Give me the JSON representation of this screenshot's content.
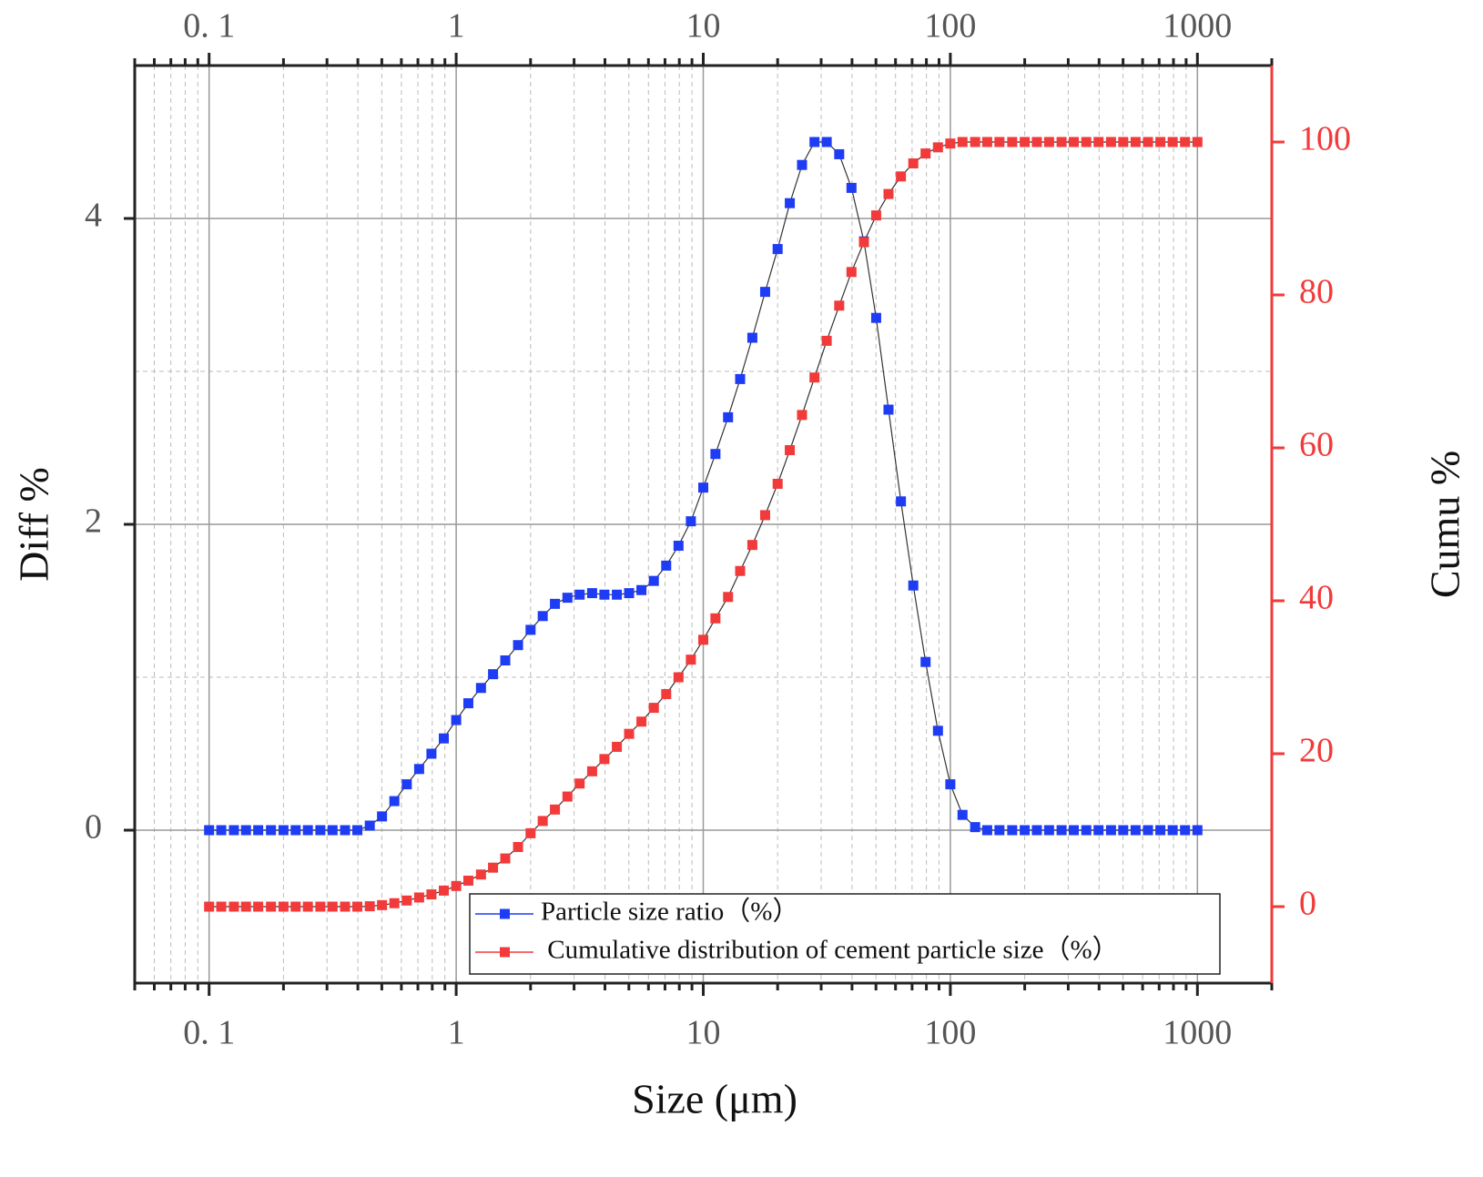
{
  "chart_data": {
    "type": "line",
    "xlabel": "Size (μm)",
    "ylabel": "Diff %",
    "y2label": "Cumu %",
    "xscale": "log",
    "xlim": [
      0.05,
      2000
    ],
    "xticks": [
      {
        "value": 0.1,
        "label": "0. 1"
      },
      1,
      10,
      100,
      1000
    ],
    "ylim": [
      -1,
      5
    ],
    "yticks": [
      0,
      2,
      4
    ],
    "y2lim": [
      -10,
      110
    ],
    "y2ticks": [
      0,
      20,
      40,
      60,
      80,
      100
    ],
    "grid": true,
    "legend": "lower center",
    "x": [
      0.1,
      0.112,
      0.126,
      0.141,
      0.158,
      0.178,
      0.2,
      0.224,
      0.251,
      0.282,
      0.316,
      0.355,
      0.398,
      0.447,
      0.501,
      0.562,
      0.631,
      0.708,
      0.794,
      0.891,
      1,
      1.12,
      1.26,
      1.41,
      1.58,
      1.78,
      2,
      2.24,
      2.51,
      2.82,
      3.16,
      3.55,
      3.98,
      4.47,
      5.01,
      5.62,
      6.31,
      7.08,
      7.94,
      8.91,
      10,
      11.2,
      12.6,
      14.1,
      15.8,
      17.8,
      20,
      22.4,
      25.1,
      28.2,
      31.6,
      35.5,
      39.8,
      44.7,
      50.1,
      56.2,
      63.1,
      70.8,
      79.4,
      89.1,
      100,
      112,
      126,
      141,
      158,
      178,
      200,
      224,
      251,
      282,
      316,
      355,
      398,
      447,
      501,
      562,
      631,
      708,
      794,
      891,
      1000
    ],
    "series": [
      {
        "name": "Particle size ratio（%）",
        "color": "#1f3cf5",
        "axis": "y",
        "values": [
          0,
          0,
          0,
          0,
          0,
          0,
          0,
          0,
          0,
          0,
          0,
          0,
          0,
          0.03,
          0.09,
          0.19,
          0.3,
          0.4,
          0.5,
          0.6,
          0.72,
          0.83,
          0.93,
          1.02,
          1.11,
          1.21,
          1.31,
          1.4,
          1.48,
          1.52,
          1.54,
          1.55,
          1.54,
          1.54,
          1.55,
          1.57,
          1.63,
          1.73,
          1.86,
          2.02,
          2.24,
          2.46,
          2.7,
          2.95,
          3.22,
          3.52,
          3.8,
          4.1,
          4.35,
          4.5,
          4.5,
          4.42,
          4.2,
          3.85,
          3.35,
          2.75,
          2.15,
          1.6,
          1.1,
          0.65,
          0.3,
          0.1,
          0.02,
          0,
          0,
          0,
          0,
          0,
          0,
          0,
          0,
          0,
          0,
          0,
          0,
          0,
          0,
          0,
          0,
          0,
          0
        ]
      },
      {
        "name": " Cumulative distribution of cement particle size（%）",
        "color": "#f23a3a",
        "axis": "y2",
        "values": [
          0,
          0,
          0,
          0,
          0,
          0,
          0,
          0,
          0,
          0,
          0,
          0,
          0,
          0.05,
          0.2,
          0.45,
          0.8,
          1.2,
          1.6,
          2.1,
          2.7,
          3.4,
          4.2,
          5.1,
          6.3,
          7.8,
          9.6,
          11.2,
          12.7,
          14.4,
          16.1,
          17.7,
          19.3,
          20.9,
          22.6,
          24.2,
          26,
          27.8,
          30,
          32.3,
          34.9,
          37.7,
          40.5,
          43.9,
          47.3,
          51.2,
          55.3,
          59.7,
          64.3,
          69.2,
          74,
          78.6,
          83,
          86.9,
          90.4,
          93.2,
          95.5,
          97.2,
          98.5,
          99.3,
          99.8,
          100,
          100,
          100,
          100,
          100,
          100,
          100,
          100,
          100,
          100,
          100,
          100,
          100,
          100,
          100,
          100,
          100,
          100,
          100,
          100
        ]
      }
    ]
  }
}
